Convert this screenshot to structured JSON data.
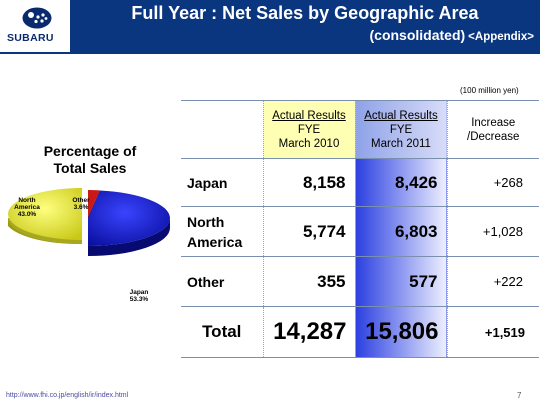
{
  "header": {
    "logo_text": "SUBARU",
    "title": "Full Year : Net Sales by Geographic Area",
    "subtitle": "(consolidated)",
    "appendix": "<Appendix>"
  },
  "unit_note": "(100 million yen)",
  "pie": {
    "title_line1": "Percentage of",
    "title_line2": "Total Sales",
    "slices": [
      {
        "name": "Japan",
        "pct_label": "53.3%",
        "value": 53.3,
        "color": "#1a22d8"
      },
      {
        "name": "North America",
        "pct_label": "43.0%",
        "value": 43.0,
        "color": "#f2f23a"
      },
      {
        "name": "Other",
        "pct_label": "3.6%",
        "value": 3.6,
        "color": "#c81818"
      }
    ],
    "labels": {
      "north_america_1": "North",
      "north_america_2": "America",
      "north_america_pct": "43.0%",
      "other_name": "Other",
      "other_pct": "3.6%",
      "japan_name": "Japan",
      "japan_pct": "53.3%"
    }
  },
  "table": {
    "head": {
      "c2010_line1": "Actual Results",
      "c2010_line2": "FYE",
      "c2010_line3": "March 2010",
      "c2011_line1": "Actual Results",
      "c2011_line2": "FYE",
      "c2011_line3": "March 2011",
      "inc_line1": "Increase",
      "inc_line2": "/Decrease"
    },
    "rows": [
      {
        "label1": "Japan",
        "label2": "",
        "v2010": "8,158",
        "v2011": "8,426",
        "inc": "+268"
      },
      {
        "label1": "North",
        "label2": "America",
        "v2010": "5,774",
        "v2011": "6,803",
        "inc": "+1,028"
      },
      {
        "label1": "Other",
        "label2": "",
        "v2010": "355",
        "v2011": "577",
        "inc": "+222"
      }
    ],
    "total": {
      "label": "Total",
      "v2010": "14,287",
      "v2011": "15,806",
      "inc": "+1,519"
    }
  },
  "footer": {
    "url": "http://www.fhi.co.jp/english/ir/index.html",
    "page": "7"
  }
}
